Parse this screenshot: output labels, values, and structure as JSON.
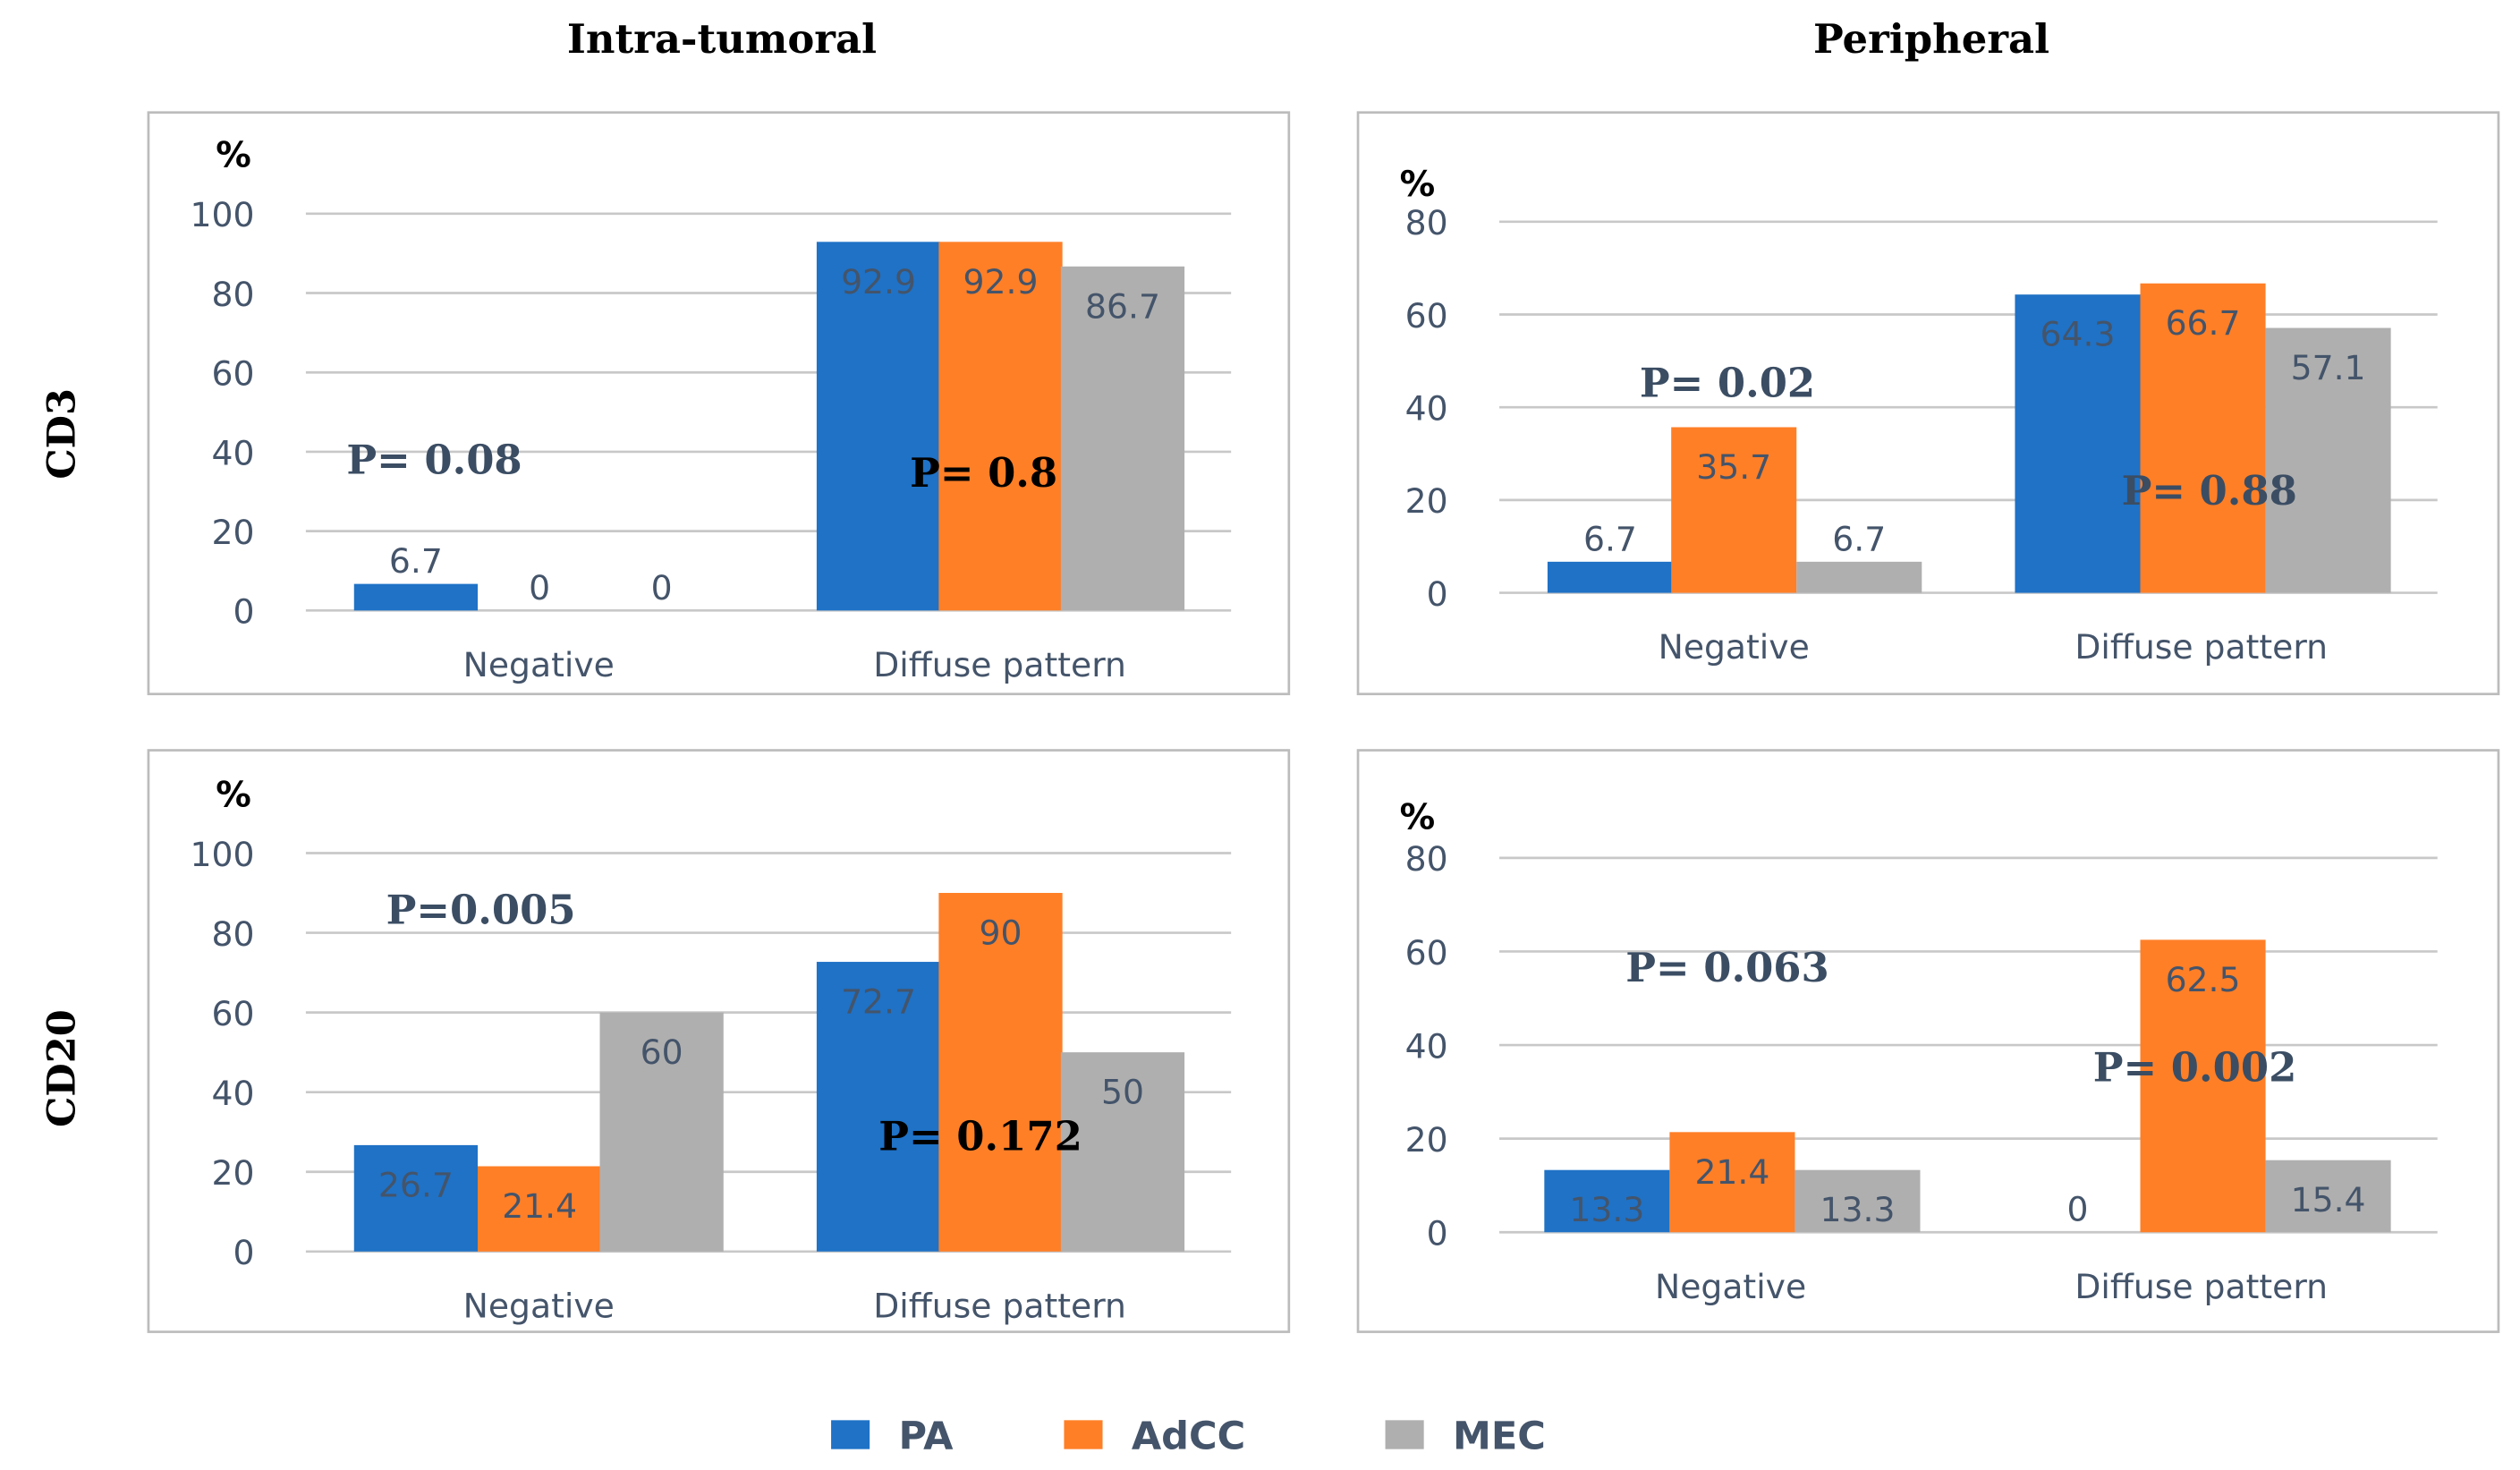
{
  "column_titles": [
    "Intra-tumoral",
    "Peripheral"
  ],
  "row_labels": [
    "CD3",
    "CD20"
  ],
  "legend": [
    {
      "name": "PA",
      "color": "#1F72C6"
    },
    {
      "name": "AdCC",
      "color": "#FF7F27"
    },
    {
      "name": "MEC",
      "color": "#AFAFAF"
    }
  ],
  "chart_data": [
    {
      "type": "bar",
      "title": "CD3 Intra-tumoral",
      "ylabel": "%",
      "ylim": [
        0,
        100
      ],
      "yticks": [
        "0",
        "20",
        "40",
        "60",
        "80",
        "100"
      ],
      "categories": [
        "Negative",
        "Diffuse pattern"
      ],
      "series": [
        {
          "name": "PA",
          "values": [
            6.7,
            92.9
          ]
        },
        {
          "name": "AdCC",
          "values": [
            0,
            92.9
          ]
        },
        {
          "name": "MEC",
          "values": [
            0,
            86.7
          ]
        }
      ],
      "value_labels": [
        [
          "6.7",
          "92.9"
        ],
        [
          "0",
          "92.9"
        ],
        [
          "0",
          "86.7"
        ]
      ],
      "annotations": [
        "P= 0.08",
        "P= 0.8"
      ]
    },
    {
      "type": "bar",
      "title": "CD3 Peripheral",
      "ylabel": "%",
      "ylim": [
        0,
        80
      ],
      "yticks": [
        "0",
        "20",
        "40",
        "60",
        "80"
      ],
      "categories": [
        "Negative",
        "Diffuse pattern"
      ],
      "series": [
        {
          "name": "PA",
          "values": [
            6.7,
            64.3
          ]
        },
        {
          "name": "AdCC",
          "values": [
            35.7,
            66.7
          ]
        },
        {
          "name": "MEC",
          "values": [
            6.7,
            57.1
          ]
        }
      ],
      "value_labels": [
        [
          "6.7",
          "64.3"
        ],
        [
          "35.7",
          "66.7"
        ],
        [
          "6.7",
          "57.1"
        ]
      ],
      "annotations": [
        "P= 0.02",
        "P= 0.88"
      ]
    },
    {
      "type": "bar",
      "title": "CD20 Intra-tumoral",
      "ylabel": "%",
      "ylim": [
        0,
        100
      ],
      "yticks": [
        "0",
        "20",
        "40",
        "60",
        "80",
        "100"
      ],
      "categories": [
        "Negative",
        "Diffuse pattern"
      ],
      "series": [
        {
          "name": "PA",
          "values": [
            26.7,
            72.7
          ]
        },
        {
          "name": "AdCC",
          "values": [
            21.4,
            90
          ]
        },
        {
          "name": "MEC",
          "values": [
            60,
            50
          ]
        }
      ],
      "value_labels": [
        [
          "26.7",
          "72.7"
        ],
        [
          "21.4",
          "90"
        ],
        [
          "60",
          "50"
        ]
      ],
      "annotations": [
        "P=0.005",
        "P= 0.172"
      ]
    },
    {
      "type": "bar",
      "title": "CD20 Peripheral",
      "ylabel": "%",
      "ylim": [
        0,
        80
      ],
      "yticks": [
        "0",
        "20",
        "40",
        "60",
        "80"
      ],
      "categories": [
        "Negative",
        "Diffuse pattern"
      ],
      "series": [
        {
          "name": "PA",
          "values": [
            13.3,
            0
          ]
        },
        {
          "name": "AdCC",
          "values": [
            21.4,
            62.5
          ]
        },
        {
          "name": "MEC",
          "values": [
            13.3,
            15.4
          ]
        }
      ],
      "value_labels": [
        [
          "13.3",
          "0"
        ],
        [
          "21.4",
          "62.5"
        ],
        [
          "13.3",
          "15.4"
        ]
      ],
      "annotations": [
        "P= 0.063",
        "P= 0.002"
      ]
    }
  ]
}
